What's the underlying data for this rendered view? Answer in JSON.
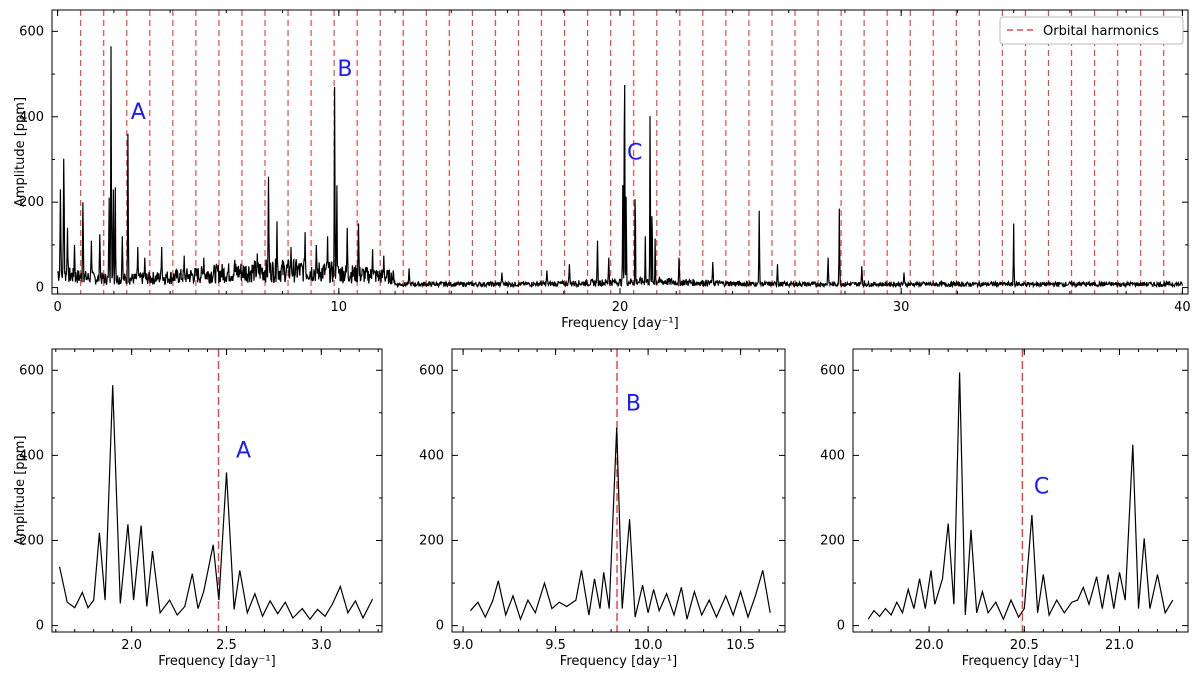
{
  "legend_label": "Orbital harmonics",
  "colors": {
    "spectrum": "#000000",
    "harmonics": "#e8474a",
    "peak_labels": "#1a1aff"
  },
  "chart_data": [
    {
      "id": "overview",
      "type": "line",
      "xlabel": "Frequency [day⁻¹]",
      "ylabel": "Amplitude [ppm]",
      "xlim": [
        -0.2,
        40.2
      ],
      "ylim": [
        -15,
        650
      ],
      "xticks": [
        0,
        10,
        20,
        30,
        40
      ],
      "yticks": [
        0,
        200,
        400,
        600
      ],
      "legend": {
        "position": "top-right",
        "entries": [
          "Orbital harmonics"
        ]
      },
      "harmonic_spacing": 0.8195,
      "harmonics_max": 39.4,
      "peaks": [
        {
          "f": 0.1,
          "a": 230,
          "w": 0.02
        },
        {
          "f": 0.22,
          "a": 310,
          "w": 0.02
        },
        {
          "f": 0.35,
          "a": 140,
          "w": 0.02
        },
        {
          "f": 0.6,
          "a": 100,
          "w": 0.02
        },
        {
          "f": 0.9,
          "a": 200,
          "w": 0.02
        },
        {
          "f": 1.2,
          "a": 110,
          "w": 0.02
        },
        {
          "f": 1.5,
          "a": 125,
          "w": 0.02
        },
        {
          "f": 1.83,
          "a": 220,
          "w": 0.016
        },
        {
          "f": 1.9,
          "a": 565,
          "w": 0.016
        },
        {
          "f": 1.98,
          "a": 240,
          "w": 0.016
        },
        {
          "f": 2.05,
          "a": 235,
          "w": 0.016
        },
        {
          "f": 2.3,
          "a": 120,
          "w": 0.02
        },
        {
          "f": 2.5,
          "a": 360,
          "w": 0.016
        },
        {
          "f": 2.85,
          "a": 95,
          "w": 0.02
        },
        {
          "f": 3.1,
          "a": 70,
          "w": 0.02
        },
        {
          "f": 3.7,
          "a": 95,
          "w": 0.02
        },
        {
          "f": 4.5,
          "a": 75,
          "w": 0.02
        },
        {
          "f": 5.2,
          "a": 70,
          "w": 0.02
        },
        {
          "f": 6.3,
          "a": 65,
          "w": 0.02
        },
        {
          "f": 7.1,
          "a": 80,
          "w": 0.02
        },
        {
          "f": 7.5,
          "a": 260,
          "w": 0.018
        },
        {
          "f": 7.8,
          "a": 155,
          "w": 0.018
        },
        {
          "f": 8.3,
          "a": 95,
          "w": 0.02
        },
        {
          "f": 8.8,
          "a": 130,
          "w": 0.02
        },
        {
          "f": 9.2,
          "a": 100,
          "w": 0.02
        },
        {
          "f": 9.6,
          "a": 120,
          "w": 0.02
        },
        {
          "f": 9.85,
          "a": 470,
          "w": 0.016
        },
        {
          "f": 9.93,
          "a": 250,
          "w": 0.016
        },
        {
          "f": 10.3,
          "a": 140,
          "w": 0.02
        },
        {
          "f": 10.7,
          "a": 150,
          "w": 0.02
        },
        {
          "f": 11.2,
          "a": 90,
          "w": 0.02
        },
        {
          "f": 11.6,
          "a": 75,
          "w": 0.02
        },
        {
          "f": 12.5,
          "a": 45,
          "w": 0.02
        },
        {
          "f": 15.8,
          "a": 35,
          "w": 0.02
        },
        {
          "f": 17.4,
          "a": 40,
          "w": 0.02
        },
        {
          "f": 18.2,
          "a": 55,
          "w": 0.02
        },
        {
          "f": 19.2,
          "a": 110,
          "w": 0.018
        },
        {
          "f": 19.6,
          "a": 70,
          "w": 0.02
        },
        {
          "f": 20.1,
          "a": 240,
          "w": 0.014
        },
        {
          "f": 20.16,
          "a": 595,
          "w": 0.014
        },
        {
          "f": 20.22,
          "a": 225,
          "w": 0.014
        },
        {
          "f": 20.54,
          "a": 260,
          "w": 0.014
        },
        {
          "f": 20.9,
          "a": 120,
          "w": 0.014
        },
        {
          "f": 21.07,
          "a": 425,
          "w": 0.014
        },
        {
          "f": 21.14,
          "a": 210,
          "w": 0.014
        },
        {
          "f": 21.25,
          "a": 115,
          "w": 0.014
        },
        {
          "f": 22.1,
          "a": 70,
          "w": 0.02
        },
        {
          "f": 23.3,
          "a": 60,
          "w": 0.02
        },
        {
          "f": 24.95,
          "a": 180,
          "w": 0.016
        },
        {
          "f": 25.6,
          "a": 55,
          "w": 0.02
        },
        {
          "f": 27.4,
          "a": 70,
          "w": 0.02
        },
        {
          "f": 27.8,
          "a": 185,
          "w": 0.016
        },
        {
          "f": 28.6,
          "a": 50,
          "w": 0.02
        },
        {
          "f": 30.1,
          "a": 35,
          "w": 0.02
        },
        {
          "f": 34.0,
          "a": 150,
          "w": 0.016
        }
      ]
    },
    {
      "id": "zoom-A",
      "type": "line",
      "xlabel": "Frequency [day⁻¹]",
      "ylabel": "Amplitude [ppm]",
      "xlim": [
        1.58,
        3.32
      ],
      "ylim": [
        -15,
        650
      ],
      "xticks": [
        2.0,
        2.5,
        3.0
      ],
      "xtick_labels": [
        "2.0",
        "2.5",
        "3.0"
      ],
      "yticks": [
        0,
        200,
        400,
        600
      ],
      "harmonic_line": 2.458,
      "annotation": {
        "text": "A",
        "x": 2.55,
        "y": 395
      },
      "points": [
        [
          1.62,
          138
        ],
        [
          1.66,
          55
        ],
        [
          1.7,
          42
        ],
        [
          1.74,
          78
        ],
        [
          1.77,
          42
        ],
        [
          1.8,
          60
        ],
        [
          1.83,
          218
        ],
        [
          1.86,
          60
        ],
        [
          1.9,
          565
        ],
        [
          1.94,
          52
        ],
        [
          1.98,
          238
        ],
        [
          2.01,
          60
        ],
        [
          2.05,
          235
        ],
        [
          2.08,
          45
        ],
        [
          2.11,
          175
        ],
        [
          2.15,
          30
        ],
        [
          2.2,
          60
        ],
        [
          2.24,
          25
        ],
        [
          2.28,
          45
        ],
        [
          2.32,
          122
        ],
        [
          2.35,
          40
        ],
        [
          2.38,
          80
        ],
        [
          2.43,
          190
        ],
        [
          2.46,
          60
        ],
        [
          2.5,
          360
        ],
        [
          2.54,
          38
        ],
        [
          2.57,
          130
        ],
        [
          2.61,
          30
        ],
        [
          2.65,
          75
        ],
        [
          2.69,
          22
        ],
        [
          2.73,
          58
        ],
        [
          2.77,
          28
        ],
        [
          2.81,
          55
        ],
        [
          2.85,
          18
        ],
        [
          2.9,
          40
        ],
        [
          2.94,
          15
        ],
        [
          2.98,
          38
        ],
        [
          3.02,
          22
        ],
        [
          3.06,
          52
        ],
        [
          3.1,
          92
        ],
        [
          3.14,
          30
        ],
        [
          3.18,
          58
        ],
        [
          3.22,
          18
        ],
        [
          3.27,
          62
        ]
      ]
    },
    {
      "id": "zoom-B",
      "type": "line",
      "xlabel": "Frequency [day⁻¹]",
      "ylabel": "",
      "xlim": [
        8.94,
        10.74
      ],
      "ylim": [
        -15,
        650
      ],
      "xticks": [
        9.0,
        9.5,
        10.0,
        10.5
      ],
      "xtick_labels": [
        "9.0",
        "9.5",
        "10.0",
        "10.5"
      ],
      "yticks": [
        0,
        200,
        400,
        600
      ],
      "harmonic_line": 9.832,
      "annotation": {
        "text": "B",
        "x": 9.88,
        "y": 505
      },
      "points": [
        [
          9.04,
          35
        ],
        [
          9.08,
          55
        ],
        [
          9.12,
          20
        ],
        [
          9.16,
          58
        ],
        [
          9.19,
          105
        ],
        [
          9.23,
          25
        ],
        [
          9.27,
          70
        ],
        [
          9.31,
          15
        ],
        [
          9.35,
          60
        ],
        [
          9.39,
          30
        ],
        [
          9.44,
          100
        ],
        [
          9.48,
          40
        ],
        [
          9.52,
          55
        ],
        [
          9.56,
          45
        ],
        [
          9.61,
          60
        ],
        [
          9.64,
          130
        ],
        [
          9.68,
          25
        ],
        [
          9.71,
          110
        ],
        [
          9.74,
          40
        ],
        [
          9.76,
          125
        ],
        [
          9.79,
          40
        ],
        [
          9.83,
          465
        ],
        [
          9.86,
          40
        ],
        [
          9.9,
          250
        ],
        [
          9.93,
          20
        ],
        [
          9.97,
          95
        ],
        [
          10.0,
          30
        ],
        [
          10.03,
          85
        ],
        [
          10.06,
          35
        ],
        [
          10.1,
          75
        ],
        [
          10.14,
          25
        ],
        [
          10.18,
          90
        ],
        [
          10.21,
          15
        ],
        [
          10.25,
          80
        ],
        [
          10.29,
          25
        ],
        [
          10.33,
          60
        ],
        [
          10.37,
          20
        ],
        [
          10.42,
          70
        ],
        [
          10.46,
          25
        ],
        [
          10.5,
          80
        ],
        [
          10.54,
          20
        ],
        [
          10.58,
          70
        ],
        [
          10.62,
          130
        ],
        [
          10.66,
          30
        ]
      ]
    },
    {
      "id": "zoom-C",
      "type": "line",
      "xlabel": "Frequency [day⁻¹]",
      "ylabel": "",
      "xlim": [
        19.6,
        21.36
      ],
      "ylim": [
        -15,
        650
      ],
      "xticks": [
        20.0,
        20.5,
        21.0
      ],
      "xtick_labels": [
        "20.0",
        "20.5",
        "21.0"
      ],
      "yticks": [
        0,
        200,
        400,
        600
      ],
      "harmonic_line": 20.49,
      "annotation": {
        "text": "C",
        "x": 20.55,
        "y": 310
      },
      "points": [
        [
          19.68,
          15
        ],
        [
          19.71,
          35
        ],
        [
          19.74,
          22
        ],
        [
          19.77,
          40
        ],
        [
          19.8,
          25
        ],
        [
          19.83,
          55
        ],
        [
          19.86,
          30
        ],
        [
          19.89,
          85
        ],
        [
          19.92,
          40
        ],
        [
          19.95,
          110
        ],
        [
          19.98,
          40
        ],
        [
          20.01,
          130
        ],
        [
          20.03,
          50
        ],
        [
          20.07,
          110
        ],
        [
          20.1,
          240
        ],
        [
          20.13,
          50
        ],
        [
          20.16,
          595
        ],
        [
          20.19,
          25
        ],
        [
          20.22,
          225
        ],
        [
          20.25,
          30
        ],
        [
          20.28,
          80
        ],
        [
          20.31,
          30
        ],
        [
          20.35,
          55
        ],
        [
          20.39,
          15
        ],
        [
          20.43,
          60
        ],
        [
          20.47,
          20
        ],
        [
          20.5,
          40
        ],
        [
          20.54,
          260
        ],
        [
          20.57,
          30
        ],
        [
          20.6,
          120
        ],
        [
          20.63,
          25
        ],
        [
          20.67,
          60
        ],
        [
          20.71,
          30
        ],
        [
          20.75,
          55
        ],
        [
          20.78,
          60
        ],
        [
          20.81,
          90
        ],
        [
          20.84,
          50
        ],
        [
          20.88,
          115
        ],
        [
          20.91,
          40
        ],
        [
          20.94,
          120
        ],
        [
          20.97,
          40
        ],
        [
          21.0,
          125
        ],
        [
          21.03,
          60
        ],
        [
          21.07,
          425
        ],
        [
          21.1,
          40
        ],
        [
          21.13,
          205
        ],
        [
          21.16,
          40
        ],
        [
          21.2,
          120
        ],
        [
          21.24,
          30
        ],
        [
          21.28,
          60
        ]
      ]
    }
  ]
}
